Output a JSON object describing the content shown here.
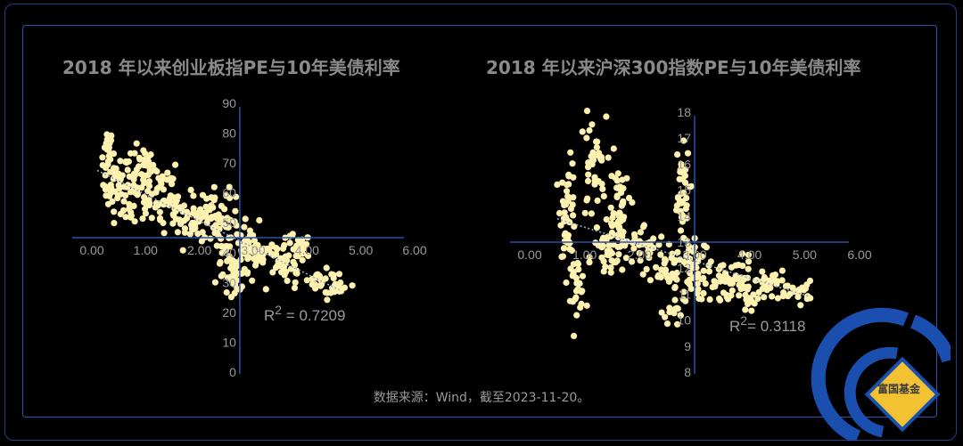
{
  "source_note": "数据来源：Wind，截至2023-11-20。",
  "logo": {
    "text": "富国基金",
    "colors": {
      "blue": "#1a4fb0",
      "gold": "#f2c233"
    }
  },
  "colors": {
    "points": "#fff2b0",
    "axis": "#2b4fa8",
    "trend": "#8fa9d6",
    "text": "#9a9a9a"
  },
  "chart_data": [
    {
      "type": "scatter",
      "title": "2018 年以来创业板指PE与10年美债利率",
      "xlim": [
        0,
        6
      ],
      "ylim": [
        0,
        90
      ],
      "x_ticks": [
        "0.00",
        "1.00",
        "2.00",
        "3.00",
        "4.00",
        "5.00",
        "6.00"
      ],
      "y_ticks": [
        "0",
        "10",
        "20",
        "30",
        "40",
        "50",
        "60",
        "70",
        "80",
        "90"
      ],
      "x_axis_crosses_y_at": 45,
      "y_axis_crosses_x_at": 2.75,
      "trendline": {
        "x": [
          0.1,
          4.6
        ],
        "y": [
          67.5,
          27.5
        ]
      },
      "r_squared": {
        "label": "R",
        "sup": "2",
        "value": " = 0.7209"
      },
      "clusters": [
        {
          "x": 0.3,
          "y": 74,
          "n": 18,
          "sx": 0.05,
          "sy": 4
        },
        {
          "x": 0.45,
          "y": 63,
          "n": 40,
          "sx": 0.12,
          "sy": 5
        },
        {
          "x": 0.8,
          "y": 58,
          "n": 40,
          "sx": 0.18,
          "sy": 5
        },
        {
          "x": 0.95,
          "y": 70,
          "n": 25,
          "sx": 0.1,
          "sy": 3
        },
        {
          "x": 1.25,
          "y": 62,
          "n": 35,
          "sx": 0.2,
          "sy": 5
        },
        {
          "x": 1.55,
          "y": 55,
          "n": 30,
          "sx": 0.2,
          "sy": 4
        },
        {
          "x": 1.9,
          "y": 50,
          "n": 30,
          "sx": 0.2,
          "sy": 4
        },
        {
          "x": 2.25,
          "y": 55,
          "n": 25,
          "sx": 0.15,
          "sy": 4
        },
        {
          "x": 2.5,
          "y": 47,
          "n": 35,
          "sx": 0.2,
          "sy": 5
        },
        {
          "x": 2.65,
          "y": 33,
          "n": 30,
          "sx": 0.15,
          "sy": 3
        },
        {
          "x": 2.9,
          "y": 38,
          "n": 30,
          "sx": 0.15,
          "sy": 4
        },
        {
          "x": 3.2,
          "y": 41,
          "n": 30,
          "sx": 0.2,
          "sy": 3
        },
        {
          "x": 3.6,
          "y": 35,
          "n": 30,
          "sx": 0.2,
          "sy": 3
        },
        {
          "x": 3.8,
          "y": 42,
          "n": 20,
          "sx": 0.15,
          "sy": 2
        },
        {
          "x": 4.3,
          "y": 30,
          "n": 25,
          "sx": 0.2,
          "sy": 2
        },
        {
          "x": 4.6,
          "y": 28,
          "n": 15,
          "sx": 0.1,
          "sy": 1.5
        }
      ]
    },
    {
      "type": "scatter",
      "title": "2018 年以来沪深300指数PE与10年美债利率",
      "xlim": [
        0,
        6
      ],
      "ylim": [
        8,
        18
      ],
      "x_ticks": [
        "0.00",
        "1.00",
        "2.00",
        "3.00",
        "4.00",
        "5.00",
        "6.00"
      ],
      "y_ticks": [
        "8",
        "9",
        "10",
        "11",
        "12",
        "13",
        "14",
        "15",
        "16",
        "17",
        "18"
      ],
      "x_axis_crosses_y_at": 13,
      "y_axis_crosses_x_at": 3.0,
      "trendline": {
        "x": [
          0.5,
          5.1
        ],
        "y": [
          13.9,
          10.9
        ]
      },
      "r_squared": {
        "label": "R",
        "sup": "2",
        "value": "= 0.3118"
      },
      "clusters": [
        {
          "x": 0.7,
          "y": 14.3,
          "n": 45,
          "sx": 0.07,
          "sy": 0.9
        },
        {
          "x": 0.85,
          "y": 11.4,
          "n": 30,
          "sx": 0.08,
          "sy": 0.5
        },
        {
          "x": 1.15,
          "y": 15.8,
          "n": 40,
          "sx": 0.12,
          "sy": 1.0
        },
        {
          "x": 1.4,
          "y": 12.4,
          "n": 30,
          "sx": 0.15,
          "sy": 0.5
        },
        {
          "x": 1.65,
          "y": 13.3,
          "n": 30,
          "sx": 0.15,
          "sy": 0.5
        },
        {
          "x": 1.65,
          "y": 14.9,
          "n": 25,
          "sx": 0.1,
          "sy": 0.6
        },
        {
          "x": 2.1,
          "y": 12.9,
          "n": 25,
          "sx": 0.2,
          "sy": 0.4
        },
        {
          "x": 2.45,
          "y": 12.2,
          "n": 25,
          "sx": 0.15,
          "sy": 0.4
        },
        {
          "x": 2.65,
          "y": 11.0,
          "n": 25,
          "sx": 0.1,
          "sy": 0.6
        },
        {
          "x": 2.75,
          "y": 14.8,
          "n": 35,
          "sx": 0.08,
          "sy": 0.9
        },
        {
          "x": 2.95,
          "y": 12.1,
          "n": 30,
          "sx": 0.12,
          "sy": 0.7
        },
        {
          "x": 3.3,
          "y": 11.4,
          "n": 30,
          "sx": 0.2,
          "sy": 0.4
        },
        {
          "x": 3.7,
          "y": 11.7,
          "n": 30,
          "sx": 0.2,
          "sy": 0.4
        },
        {
          "x": 4.0,
          "y": 10.9,
          "n": 25,
          "sx": 0.15,
          "sy": 0.35
        },
        {
          "x": 4.4,
          "y": 11.4,
          "n": 25,
          "sx": 0.2,
          "sy": 0.3
        },
        {
          "x": 4.85,
          "y": 11.1,
          "n": 20,
          "sx": 0.15,
          "sy": 0.2
        }
      ]
    }
  ]
}
